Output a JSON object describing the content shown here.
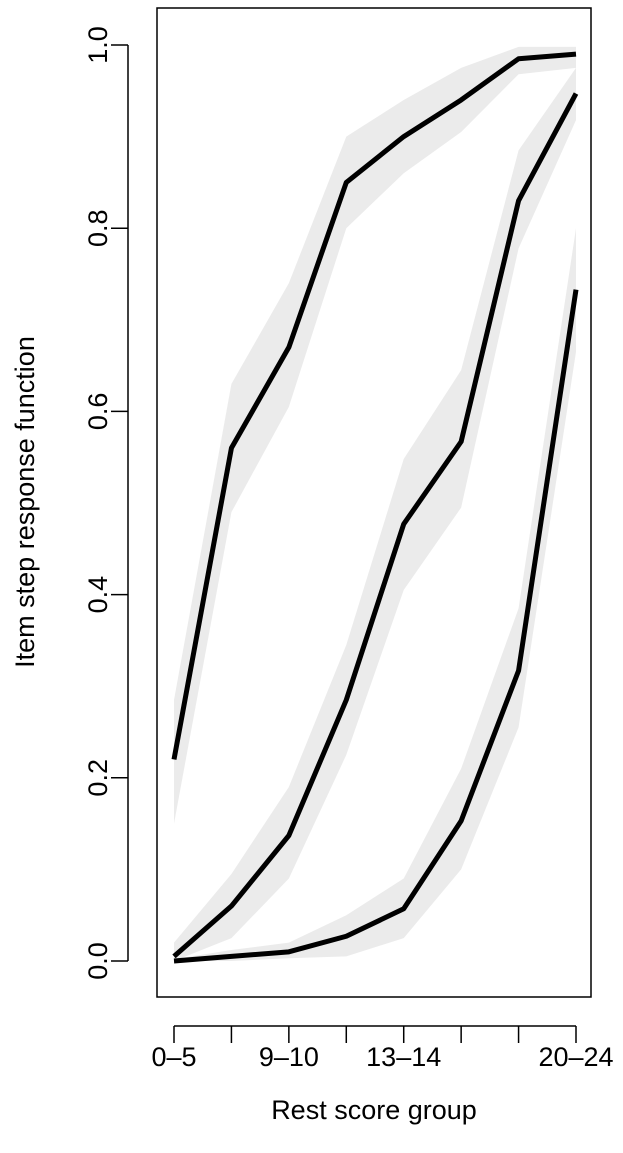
{
  "chart_data": {
    "type": "line",
    "xlabel": "Rest score group",
    "ylabel": "Item step response function",
    "categories": [
      "0–5",
      "",
      "9–10",
      "",
      "13–14",
      "",
      "",
      "20–24"
    ],
    "ylim": [
      0,
      1
    ],
    "yticks": [
      "0.0",
      "0.2",
      "0.4",
      "0.6",
      "0.8",
      "1.0"
    ],
    "grid": false,
    "series": [
      {
        "values": [
          0.22,
          0.56,
          0.67,
          0.85,
          0.9,
          0.94,
          0.985,
          0.99
        ],
        "lower": [
          0.15,
          0.49,
          0.605,
          0.8,
          0.86,
          0.905,
          0.968,
          0.975
        ],
        "upper": [
          0.285,
          0.63,
          0.74,
          0.9,
          0.94,
          0.975,
          0.998,
          0.998
        ]
      },
      {
        "values": [
          0.005,
          0.06,
          0.137,
          0.285,
          0.477,
          0.567,
          0.83,
          0.947
        ],
        "lower": [
          0.0,
          0.025,
          0.09,
          0.225,
          0.405,
          0.495,
          0.778,
          0.918
        ],
        "upper": [
          0.02,
          0.095,
          0.19,
          0.345,
          0.548,
          0.645,
          0.885,
          0.975
        ]
      },
      {
        "values": [
          0.0,
          0.005,
          0.01,
          0.027,
          0.057,
          0.153,
          0.317,
          0.733
        ],
        "lower": [
          0.0,
          0.0,
          0.003,
          0.005,
          0.025,
          0.1,
          0.255,
          0.665
        ],
        "upper": [
          0.002,
          0.012,
          0.02,
          0.05,
          0.09,
          0.21,
          0.385,
          0.8
        ]
      }
    ],
    "line_color": "#000000",
    "band_color": "#ebebeb"
  }
}
